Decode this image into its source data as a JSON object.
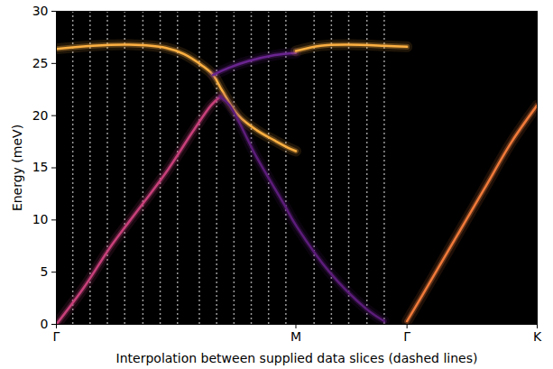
{
  "chart_data": {
    "type": "line",
    "xlabel": "Interpolation between supplied data slices (dashed lines)",
    "ylabel": "Energy (meV)",
    "xlim": [
      0,
      528
    ],
    "ylim": [
      0,
      30
    ],
    "xticks": [
      {
        "value": 0,
        "label": "Γ"
      },
      {
        "value": 263,
        "label": "M"
      },
      {
        "value": 385,
        "label": "Γ"
      },
      {
        "value": 528,
        "label": "K"
      }
    ],
    "yticks": [
      0,
      5,
      10,
      15,
      20,
      25,
      30
    ],
    "slices": [
      18,
      37,
      56,
      75,
      95,
      114,
      133,
      157,
      176,
      195,
      214,
      233,
      252,
      283,
      302,
      321,
      341,
      360
    ],
    "series": [
      {
        "color": "#fdb042",
        "x": [
          0,
          40,
          80,
          120,
          140,
          160,
          172,
          182,
          200,
          220,
          240,
          255,
          263
        ],
        "values": [
          26.4,
          26.7,
          26.8,
          26.5,
          25.9,
          24.8,
          23.9,
          22.4,
          20.0,
          18.6,
          17.6,
          16.9,
          16.6
        ]
      },
      {
        "color": "#c8407a",
        "x": [
          0,
          30,
          60,
          90,
          120,
          150,
          170,
          180
        ],
        "values": [
          0,
          3.5,
          7.5,
          11.0,
          14.5,
          18.5,
          21.0,
          21.8
        ]
      },
      {
        "color": "#5c1d7a",
        "x": [
          180,
          190,
          220,
          250,
          263,
          300,
          340,
          360
        ],
        "values": [
          21.8,
          21.0,
          16.0,
          11.5,
          9.5,
          5.0,
          1.5,
          0.3
        ]
      },
      {
        "color": "#6a2590",
        "x": [
          172,
          190,
          210,
          240,
          263
        ],
        "values": [
          23.9,
          24.6,
          25.2,
          25.8,
          26.0
        ]
      },
      {
        "color": "#fdb042",
        "x": [
          263,
          290,
          320,
          360,
          385
        ],
        "values": [
          26.2,
          26.7,
          26.8,
          26.7,
          26.6
        ]
      },
      {
        "color": "#f07a3a",
        "x": [
          385,
          410,
          440,
          470,
          500,
          528
        ],
        "values": [
          0.3,
          4.0,
          8.5,
          13.0,
          17.5,
          21.0
        ]
      }
    ]
  }
}
